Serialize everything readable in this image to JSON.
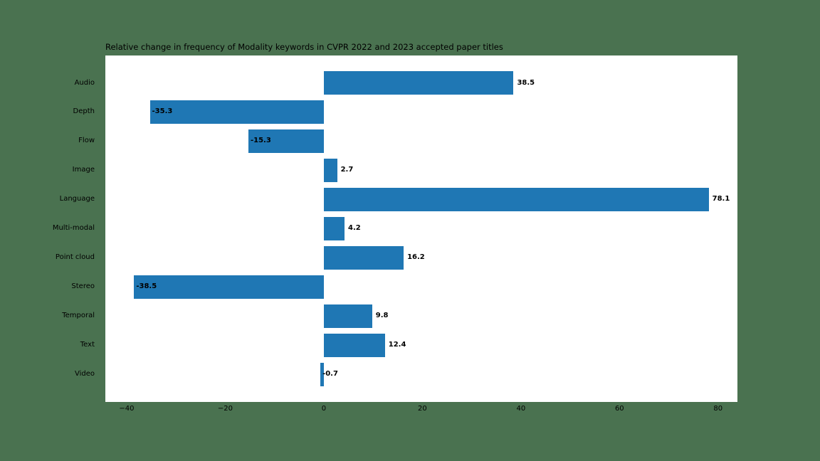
{
  "chart_data": {
    "type": "bar",
    "orientation": "horizontal",
    "title": "Relative change in frequency of Modality keywords in CVPR 2022 and 2023 accepted paper titles",
    "categories": [
      "Audio",
      "Depth",
      "Flow",
      "Image",
      "Language",
      "Multi-modal",
      "Point cloud",
      "Stereo",
      "Temporal",
      "Text",
      "Video"
    ],
    "values": [
      38.5,
      -35.3,
      -15.3,
      2.7,
      78.1,
      4.2,
      16.2,
      -38.5,
      9.8,
      12.4,
      -0.7
    ],
    "value_labels": [
      "38.5",
      "-35.3",
      "-15.3",
      "2.7",
      "78.1",
      "4.2",
      "16.2",
      "-38.5",
      "9.8",
      "12.4",
      "-0.7"
    ],
    "xlabel": "",
    "ylabel": "",
    "xlim": [
      -44.33,
      83.93
    ],
    "xticks": [
      -40,
      -20,
      0,
      20,
      40,
      60,
      80
    ],
    "xtick_labels": [
      "−40",
      "−20",
      "0",
      "20",
      "40",
      "60",
      "80"
    ],
    "grid": false,
    "legend": null,
    "bar_color": "#1f77b4",
    "figure_background": "#4a7250",
    "plot_background": "#ffffff",
    "text_color": "#000000"
  }
}
